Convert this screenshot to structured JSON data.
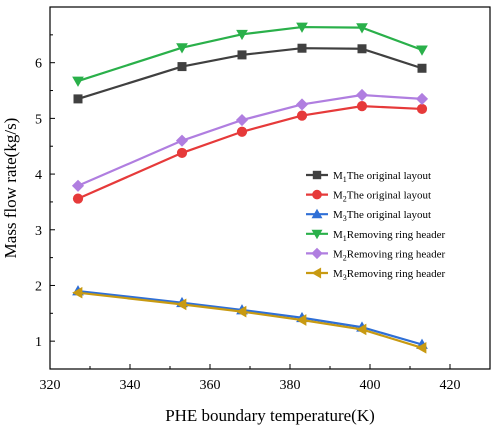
{
  "chart_data": {
    "type": "line",
    "xlabel": "PHE boundary temperature(K)",
    "ylabel": "Mass flow rate(kg/s)",
    "xlim": [
      320,
      430
    ],
    "ylim": [
      0.5,
      7.0
    ],
    "xticks": [
      320,
      340,
      360,
      380,
      400,
      420
    ],
    "yticks": [
      1,
      2,
      3,
      4,
      5,
      6
    ],
    "x": [
      327,
      353,
      368,
      383,
      398,
      413
    ],
    "legend_position": "right",
    "series": [
      {
        "name": "M1The original layout",
        "name_main": "M",
        "name_sub": "1",
        "name_rest": "The original layout",
        "color": "#404040",
        "marker": "square",
        "values": [
          5.35,
          5.93,
          6.14,
          6.26,
          6.25,
          5.9
        ]
      },
      {
        "name": "M2The original layout",
        "name_main": "M",
        "name_sub": "2",
        "name_rest": "The original layout",
        "color": "#e63a3a",
        "marker": "circle",
        "values": [
          3.56,
          4.38,
          4.76,
          5.05,
          5.22,
          5.17
        ]
      },
      {
        "name": "M3The original layout",
        "name_main": "M",
        "name_sub": "3",
        "name_rest": "The original layout",
        "color": "#2f6fd6",
        "marker": "triangle-up",
        "values": [
          1.9,
          1.69,
          1.56,
          1.42,
          1.25,
          0.94
        ]
      },
      {
        "name": "M1Removing ring header",
        "name_main": "M",
        "name_sub": "1",
        "name_rest": "Removing ring header",
        "color": "#2ab04a",
        "marker": "triangle-down",
        "values": [
          5.67,
          6.27,
          6.51,
          6.64,
          6.63,
          6.23
        ]
      },
      {
        "name": "M2Removing ring header",
        "name_main": "M",
        "name_sub": "2",
        "name_rest": "Removing ring header",
        "color": "#b07ee0",
        "marker": "diamond",
        "values": [
          3.79,
          4.6,
          4.97,
          5.25,
          5.42,
          5.35
        ]
      },
      {
        "name": "M3Removing ring header",
        "name_main": "M",
        "name_sub": "3",
        "name_rest": "Removing ring header",
        "color": "#c89a12",
        "marker": "triangle-left",
        "values": [
          1.87,
          1.66,
          1.53,
          1.38,
          1.21,
          0.88
        ]
      }
    ]
  }
}
